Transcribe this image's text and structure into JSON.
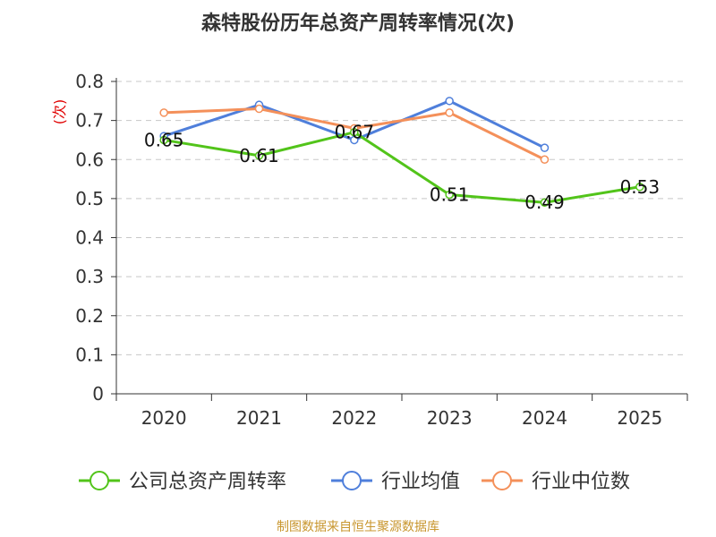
{
  "source_text": "制图数据来自恒生聚源数据库",
  "chart_data": {
    "type": "line",
    "title": "森特股份历年总资产周转率情况(次)",
    "xlabel": "",
    "ylabel": "(次)",
    "categories": [
      "2020",
      "2021",
      "2022",
      "2023",
      "2024",
      "2025"
    ],
    "ylim": [
      0,
      0.8
    ],
    "yticks": [
      "0",
      "0.1",
      "0.2",
      "0.3",
      "0.4",
      "0.5",
      "0.6",
      "0.7",
      "0.8"
    ],
    "grid": true,
    "legend_position": "bottom",
    "series": [
      {
        "name": "公司总资产周转率",
        "color": "#52c41a",
        "values": [
          0.65,
          0.61,
          0.67,
          0.51,
          0.49,
          0.53
        ],
        "labels": [
          "0.65",
          "0.61",
          "0.67",
          "0.51",
          "0.49",
          "0.53"
        ]
      },
      {
        "name": "行业均值",
        "color": "#4f7fdb",
        "values": [
          0.66,
          0.74,
          0.65,
          0.75,
          0.63,
          null
        ]
      },
      {
        "name": "行业中位数",
        "color": "#f4905a",
        "values": [
          0.72,
          0.73,
          0.68,
          0.72,
          0.6,
          null
        ]
      }
    ]
  }
}
